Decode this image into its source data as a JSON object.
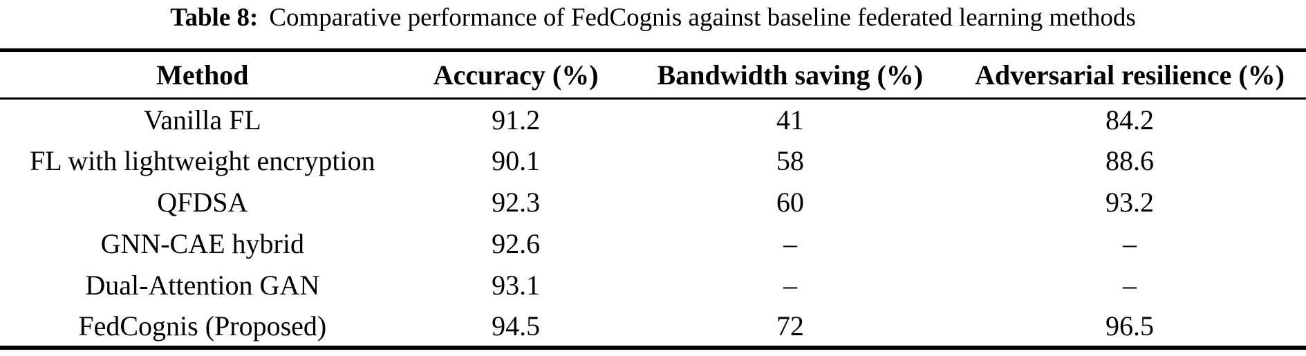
{
  "caption": {
    "label": "Table 8:",
    "text": "Comparative performance of FedCognis against baseline federated learning methods"
  },
  "table": {
    "headers": [
      "Method",
      "Accuracy (%)",
      "Bandwidth saving (%)",
      "Adversarial resilience (%)"
    ],
    "rows": [
      [
        "Vanilla FL",
        "91.2",
        "41",
        "84.2"
      ],
      [
        "FL with lightweight encryption",
        "90.1",
        "58",
        "88.6"
      ],
      [
        "QFDSA",
        "92.3",
        "60",
        "93.2"
      ],
      [
        "GNN-CAE hybrid",
        "92.6",
        "–",
        "–"
      ],
      [
        "Dual-Attention GAN",
        "93.1",
        "–",
        "–"
      ],
      [
        "FedCognis (Proposed)",
        "94.5",
        "72",
        "96.5"
      ]
    ]
  },
  "colors": {
    "text": "#000000",
    "background": "#ffffff",
    "rule": "#000000"
  }
}
